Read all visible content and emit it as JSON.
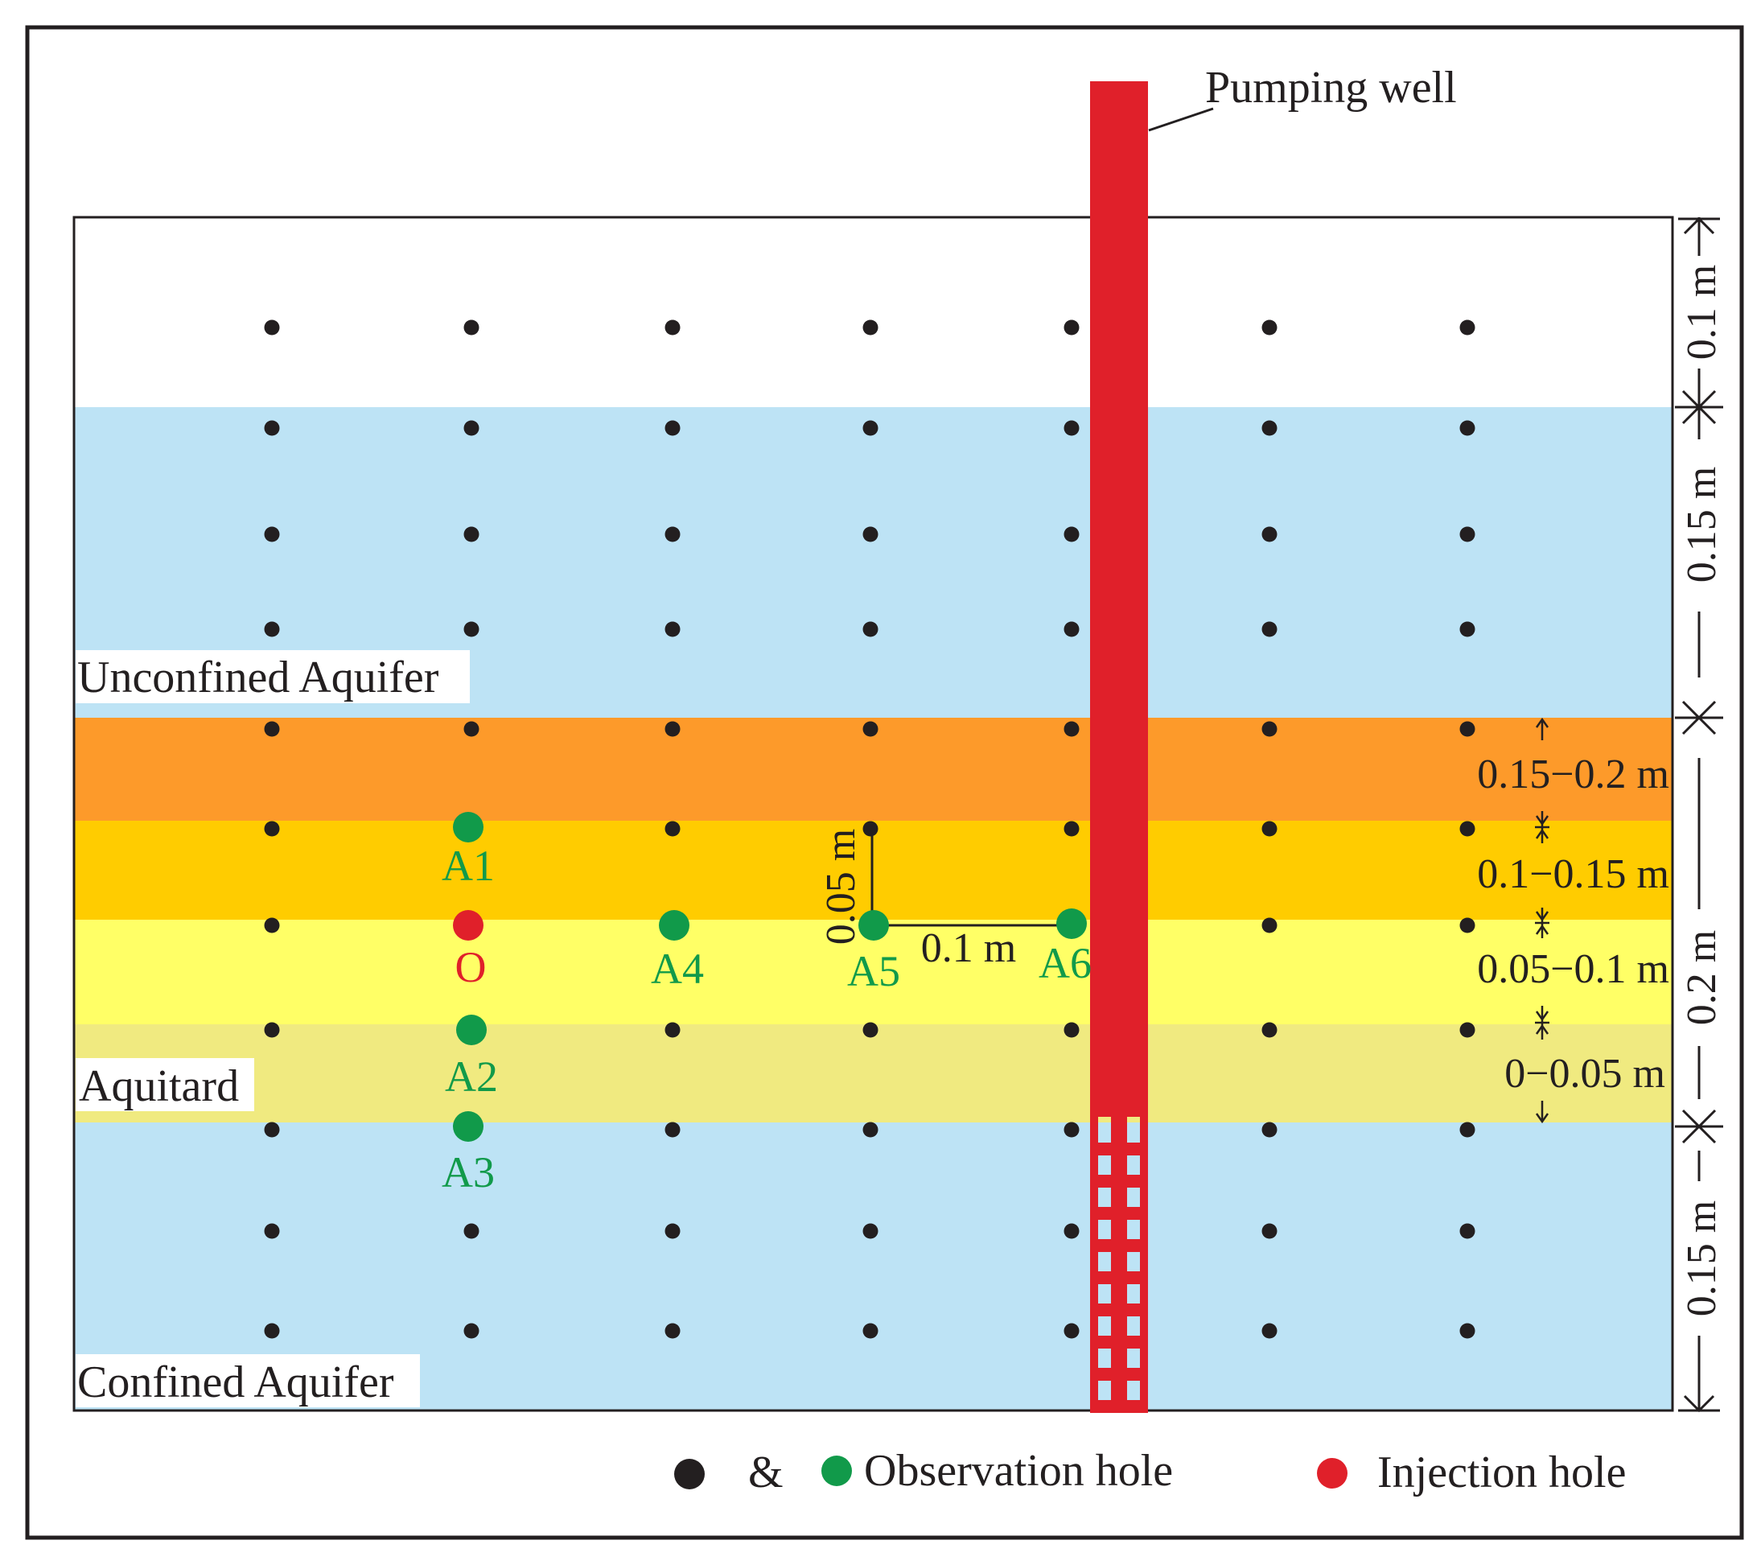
{
  "well": {
    "label": "Pumping well"
  },
  "layers": {
    "unconfined": "Unconfined Aquifer",
    "aquitard": "Aquitard",
    "confined": "Confined Aquifer"
  },
  "dimensions": {
    "top": "0.1 m",
    "unconfined": "0.15 m",
    "aquitard": "0.2 m",
    "confined": "0.15 m",
    "sub_layers": [
      "0.15−0.2 m",
      "0.1−0.15 m",
      "0.05−0.1 m",
      "0−0.05 m"
    ],
    "spacing_vertical": "0.05 m",
    "spacing_horizontal": "0.1 m"
  },
  "points": {
    "A1": "A1",
    "A2": "A2",
    "A3": "A3",
    "A4": "A4",
    "A5": "A5",
    "A6": "A6",
    "O": "O"
  },
  "legend": {
    "ampersand": "&",
    "observation": "Observation hole",
    "injection": "Injection hole"
  },
  "colors": {
    "unconfined_aquifer": "#bde3f5",
    "confined_aquifer": "#bde3f5",
    "aquitard_0_15_0_2": "#fd9a2a",
    "aquitard_0_1_0_15": "#ffcc00",
    "aquitard_0_05_0_1": "#ffff66",
    "aquitard_0_0_05": "#f0ea80",
    "well": "#e0202a",
    "observation_green": "#119a4a",
    "injection_red": "#e0202a",
    "grid_dot": "#231f20"
  }
}
